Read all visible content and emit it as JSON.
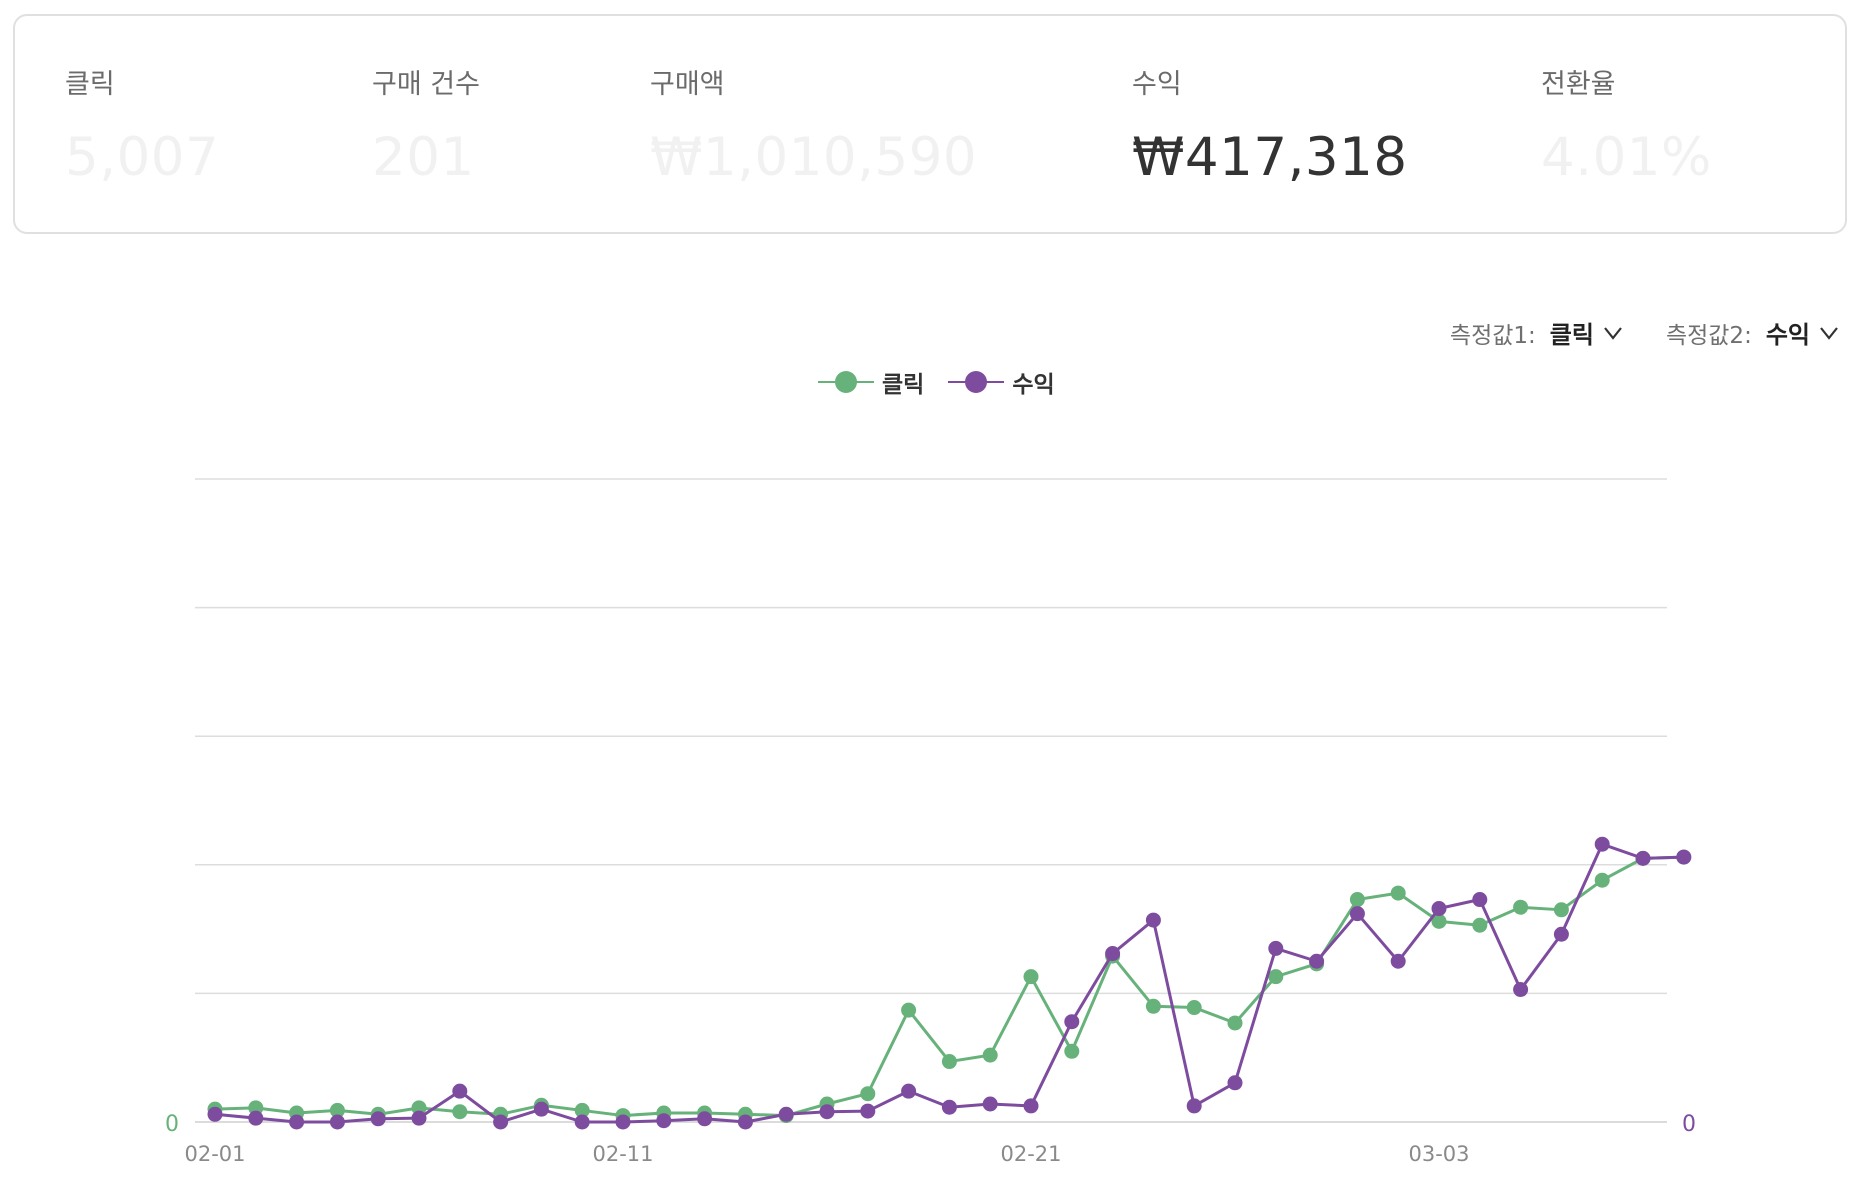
{
  "summary": {
    "metrics": [
      {
        "label": "클릭",
        "value": "5,007",
        "active": false
      },
      {
        "label": "구매 건수",
        "value": "201",
        "active": false
      },
      {
        "label": "구매액",
        "value": "₩1,010,590",
        "active": false
      },
      {
        "label": "수익",
        "value": "₩417,318",
        "active": true
      },
      {
        "label": "전환율",
        "value": "4.01%",
        "active": false
      }
    ]
  },
  "selectors": {
    "metric1_label": "측정값1:",
    "metric1_value": "클릭",
    "metric2_label": "측정값2:",
    "metric2_value": "수익"
  },
  "legend": {
    "series1": "클릭",
    "series2": "수익"
  },
  "colors": {
    "clicks": "#67b27a",
    "revenue": "#7e4c9e",
    "grid": "#dddddd"
  },
  "chart_data": {
    "type": "line",
    "dates": [
      "02-01",
      "02-02",
      "02-03",
      "02-04",
      "02-05",
      "02-06",
      "02-07",
      "02-08",
      "02-09",
      "02-10",
      "02-11",
      "02-12",
      "02-13",
      "02-14",
      "02-15",
      "02-16",
      "02-17",
      "02-18",
      "02-19",
      "02-20",
      "02-21",
      "02-22",
      "02-23",
      "02-24",
      "02-25",
      "02-26",
      "02-27",
      "02-28",
      "03-01",
      "03-02",
      "03-03",
      "03-04",
      "03-05",
      "03-06",
      "03-07",
      "03-08",
      "03-09"
    ],
    "x_tick_labels": [
      "02-01",
      "02-11",
      "02-21",
      "03-03"
    ],
    "left_axis": {
      "min_label": "0",
      "ylim": [
        0,
        500
      ]
    },
    "right_axis": {
      "min_label": "0",
      "ylim": [
        0,
        50000
      ]
    },
    "grid": true,
    "legend_position": "top-center",
    "series": [
      {
        "name": "클릭",
        "axis": "left",
        "values": [
          10,
          11,
          7,
          9,
          6,
          11,
          8,
          6,
          13,
          9,
          5,
          7,
          7,
          6,
          5,
          14,
          22,
          87,
          47,
          52,
          113,
          55,
          129,
          90,
          89,
          77,
          113,
          123,
          173,
          178,
          156,
          153,
          167,
          165,
          188,
          205,
          206
        ]
      },
      {
        "name": "수익",
        "axis": "right",
        "values": [
          600,
          300,
          0,
          0,
          250,
          300,
          2400,
          0,
          1000,
          0,
          0,
          100,
          250,
          0,
          600,
          800,
          850,
          2400,
          1150,
          1400,
          1250,
          7800,
          13100,
          15700,
          1250,
          3050,
          13500,
          12500,
          16200,
          12500,
          16600,
          17300,
          10300,
          14600,
          21600,
          20500,
          20600
        ]
      }
    ]
  }
}
